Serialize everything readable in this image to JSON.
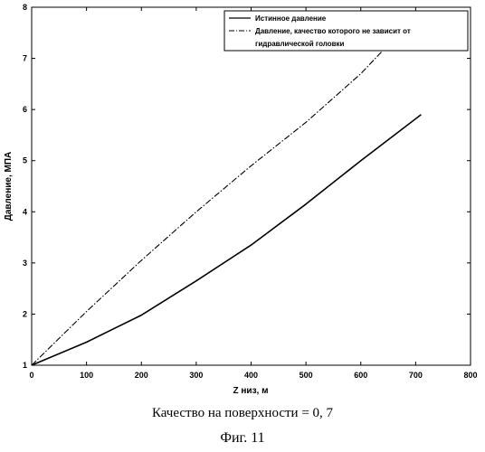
{
  "chart_data": {
    "type": "line",
    "xlabel": "Z низ, м",
    "ylabel": "Давление, МПА",
    "xlim": [
      0,
      800
    ],
    "ylim": [
      1,
      8
    ],
    "xticks": [
      0,
      100,
      200,
      300,
      400,
      500,
      600,
      700,
      800
    ],
    "yticks": [
      1,
      2,
      3,
      4,
      5,
      6,
      7,
      8
    ],
    "grid": false,
    "legend_position": "top-right",
    "series": [
      {
        "name": "Истинное давление",
        "style": "solid",
        "color": "#000000",
        "x": [
          0,
          100,
          200,
          300,
          400,
          500,
          600,
          710
        ],
        "y": [
          1.0,
          1.45,
          1.98,
          2.65,
          3.35,
          4.15,
          5.0,
          5.9
        ]
      },
      {
        "name": "Давление, качество которого не зависит от гидравлической головки",
        "style": "dashdot",
        "color": "#000000",
        "x": [
          0,
          100,
          200,
          300,
          400,
          500,
          600,
          675
        ],
        "y": [
          1.0,
          2.05,
          3.05,
          4.0,
          4.9,
          5.75,
          6.7,
          7.55
        ]
      }
    ]
  },
  "legend": {
    "line1": "Истинное давление",
    "line2": "Давление, качество которого не зависит от",
    "line3": "гидравлической головки"
  },
  "captions": {
    "note": "Качество на поверхности = 0, 7",
    "figure": "Фиг. 11"
  }
}
